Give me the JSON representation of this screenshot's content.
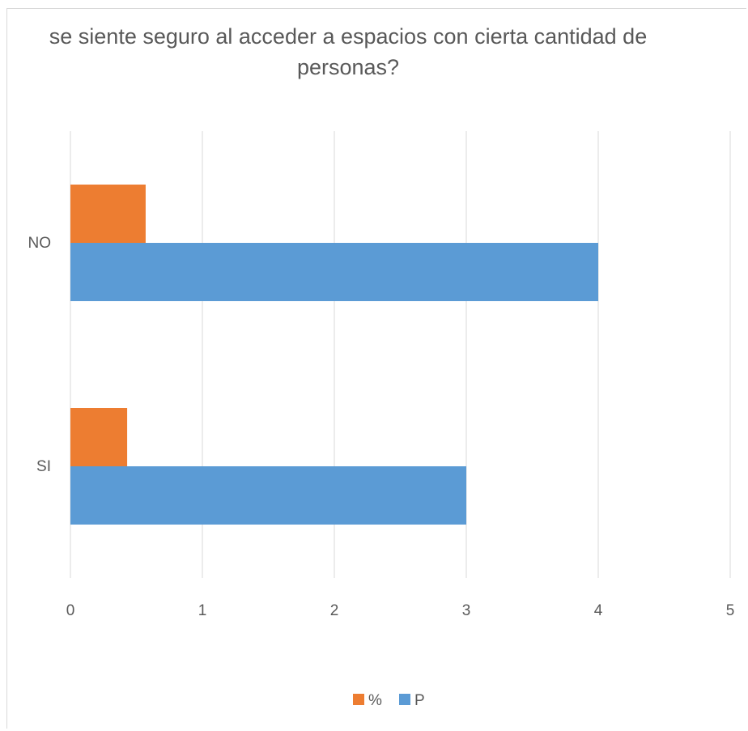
{
  "chart_data": {
    "type": "bar",
    "orientation": "horizontal",
    "title": "se siente seguro al acceder a espacios con cierta cantidad de personas?",
    "categories": [
      "NO",
      "SI"
    ],
    "series": [
      {
        "name": "%",
        "values": [
          0.57,
          0.43
        ],
        "color": "#ed7d31"
      },
      {
        "name": "P",
        "values": [
          4,
          3
        ],
        "color": "#5b9bd5"
      }
    ],
    "xticks": [
      "0",
      "1",
      "2",
      "3",
      "4",
      "5"
    ],
    "xlim": [
      0,
      5
    ],
    "grid": true,
    "legend": "bottom"
  }
}
